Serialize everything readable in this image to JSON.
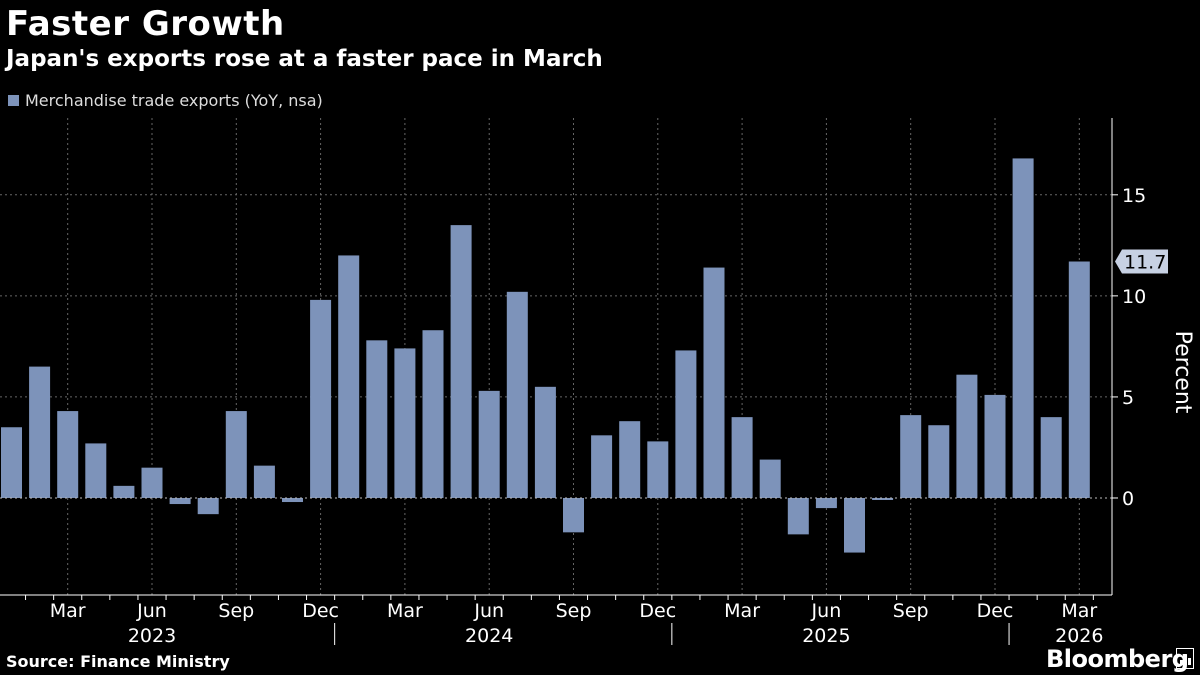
{
  "header": {
    "title": "Faster Growth",
    "subtitle": "Japan's exports rose at a faster pace in March"
  },
  "legend": {
    "label": "Merchandise trade exports (YoY, nsa)"
  },
  "footer": {
    "source": "Source: Finance Ministry",
    "brand": "Bloomberg"
  },
  "colors": {
    "bar": "#7d93ba",
    "background": "#000000",
    "grid": "#666666",
    "text": "#ffffff"
  },
  "chart_data": {
    "type": "bar",
    "title": "Faster Growth",
    "subtitle": "Japan's exports rose at a faster pace in March",
    "ylabel": "Percent",
    "ylim": [
      -4.8,
      18.8
    ],
    "yticks": [
      0,
      5,
      10,
      15
    ],
    "grid": true,
    "y_axis_side": "right",
    "categories": [
      "2023-01",
      "2023-02",
      "2023-03",
      "2023-04",
      "2023-05",
      "2023-06",
      "2023-07",
      "2023-08",
      "2023-09",
      "2023-10",
      "2023-11",
      "2023-12",
      "2024-01",
      "2024-02",
      "2024-03",
      "2024-04",
      "2024-05",
      "2024-06",
      "2024-07",
      "2024-08",
      "2024-09",
      "2024-10",
      "2024-11",
      "2024-12",
      "2025-01",
      "2025-02",
      "2025-03",
      "2025-04",
      "2025-05",
      "2025-06",
      "2025-07",
      "2025-08",
      "2025-09",
      "2025-10",
      "2025-11",
      "2025-12",
      "2026-01",
      "2026-02",
      "2026-03"
    ],
    "series": [
      {
        "name": "Merchandise trade exports (YoY, nsa)",
        "values": [
          3.5,
          6.5,
          4.3,
          2.7,
          0.6,
          1.5,
          -0.3,
          -0.8,
          4.3,
          1.6,
          -0.2,
          9.8,
          12.0,
          7.8,
          7.4,
          8.3,
          13.5,
          5.3,
          10.2,
          5.5,
          -1.7,
          3.1,
          3.8,
          2.8,
          7.3,
          11.4,
          4.0,
          1.9,
          -1.8,
          -0.5,
          -2.7,
          -0.1,
          4.1,
          3.6,
          6.1,
          5.1,
          16.8,
          4.0,
          11.7
        ]
      }
    ],
    "x_tick_labels": [
      {
        "index": 2,
        "label": "Mar"
      },
      {
        "index": 5,
        "label": "Jun"
      },
      {
        "index": 8,
        "label": "Sep"
      },
      {
        "index": 11,
        "label": "Dec"
      },
      {
        "index": 14,
        "label": "Mar"
      },
      {
        "index": 17,
        "label": "Jun"
      },
      {
        "index": 20,
        "label": "Sep"
      },
      {
        "index": 23,
        "label": "Dec"
      },
      {
        "index": 26,
        "label": "Mar"
      },
      {
        "index": 29,
        "label": "Jun"
      },
      {
        "index": 32,
        "label": "Sep"
      },
      {
        "index": 35,
        "label": "Dec"
      },
      {
        "index": 38,
        "label": "Mar"
      }
    ],
    "year_labels": [
      {
        "center_index": 5,
        "label": "2023"
      },
      {
        "center_index": 17,
        "label": "2024"
      },
      {
        "center_index": 29,
        "label": "2025"
      },
      {
        "center_index": 38,
        "label": "2026"
      }
    ],
    "year_dividers": [
      11.5,
      23.5,
      35.5
    ],
    "callout": {
      "index": 38,
      "value": 11.7,
      "label": "11.7"
    }
  }
}
